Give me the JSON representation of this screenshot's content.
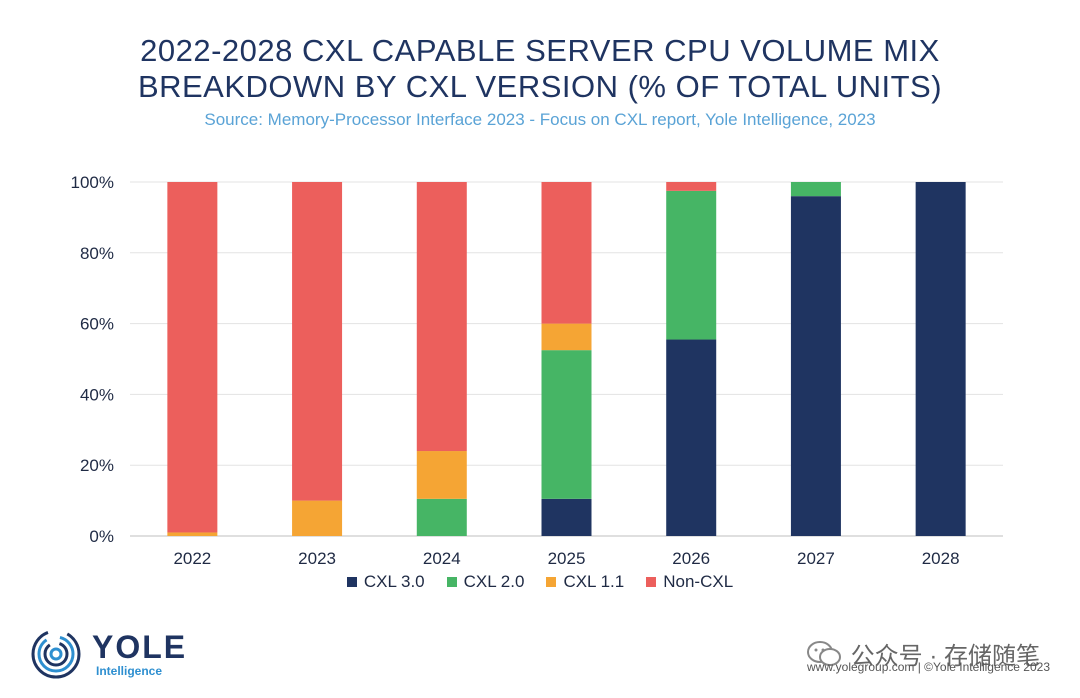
{
  "header": {
    "title_line1": "2022-2028 CXL CAPABLE SERVER CPU VOLUME MIX",
    "title_line2": "BREAKDOWN BY CXL VERSION (% OF TOTAL UNITS)",
    "source": "Source: Memory-Processor Interface 2023 - Focus on CXL  report, Yole Intelligence, 2023"
  },
  "chart_data": {
    "type": "bar",
    "stacked": true,
    "title": "2022-2028 CXL CAPABLE SERVER CPU VOLUME MIX BREAKDOWN BY CXL VERSION (% OF TOTAL UNITS)",
    "categories": [
      "2022",
      "2023",
      "2024",
      "2025",
      "2026",
      "2027",
      "2028"
    ],
    "series": [
      {
        "name": "CXL 3.0",
        "color": "#1f3461",
        "values": [
          0,
          0,
          0,
          10.5,
          55.5,
          96,
          100
        ]
      },
      {
        "name": "CXL 2.0",
        "color": "#46b565",
        "values": [
          0,
          0,
          10.5,
          42,
          42,
          4,
          0
        ]
      },
      {
        "name": "CXL 1.1",
        "color": "#f5a534",
        "values": [
          1,
          10,
          13.5,
          7.5,
          0,
          0,
          0
        ]
      },
      {
        "name": "Non-CXL",
        "color": "#ec5f5c",
        "values": [
          99,
          90,
          76,
          40,
          2.5,
          0,
          0
        ]
      }
    ],
    "y_ticks": [
      "0%",
      "20%",
      "40%",
      "60%",
      "80%",
      "100%"
    ],
    "ylim": [
      0,
      100
    ],
    "grid": true,
    "legend_position": "bottom"
  },
  "legend": [
    {
      "label": "CXL 3.0",
      "color": "#1f3461"
    },
    {
      "label": "CXL 2.0",
      "color": "#46b565"
    },
    {
      "label": "CXL 1.1",
      "color": "#f5a534"
    },
    {
      "label": "Non-CXL",
      "color": "#ec5f5c"
    }
  ],
  "branding": {
    "logo_name": "YOLE",
    "logo_sub": "Intelligence",
    "watermark": "公众号 · 存储随笔",
    "footer": "www.yolegroup.com | ©Yole Intelligence 2023"
  }
}
